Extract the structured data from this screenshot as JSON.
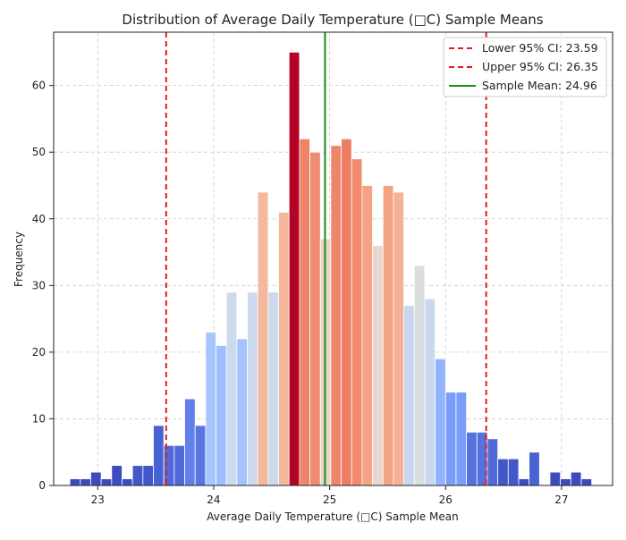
{
  "chart_data": {
    "type": "bar",
    "title": "Distribution of Average Daily Temperature (□C) Sample Means",
    "xlabel": "Average Daily Temperature (□C) Sample Mean",
    "ylabel": "Frequency",
    "xlim": [
      22.62,
      27.44
    ],
    "ylim": [
      0,
      68
    ],
    "xticks": [
      23,
      24,
      25,
      26,
      27
    ],
    "yticks": [
      0,
      10,
      20,
      30,
      40,
      50,
      60
    ],
    "grid": true,
    "bin_width": 0.09,
    "bins": [
      {
        "x": 22.76,
        "count": 1,
        "color": "#3b4cc0"
      },
      {
        "x": 22.85,
        "count": 1,
        "color": "#3b4cc0"
      },
      {
        "x": 22.94,
        "count": 2,
        "color": "#3b4cc0"
      },
      {
        "x": 23.03,
        "count": 1,
        "color": "#3b4cc0"
      },
      {
        "x": 23.12,
        "count": 3,
        "color": "#3b4cc0"
      },
      {
        "x": 23.21,
        "count": 1,
        "color": "#3b4cc0"
      },
      {
        "x": 23.3,
        "count": 3,
        "color": "#4257c9"
      },
      {
        "x": 23.39,
        "count": 3,
        "color": "#4257c9"
      },
      {
        "x": 23.48,
        "count": 9,
        "color": "#4a63d3"
      },
      {
        "x": 23.57,
        "count": 6,
        "color": "#4f69d9"
      },
      {
        "x": 23.66,
        "count": 6,
        "color": "#4f69d9"
      },
      {
        "x": 23.75,
        "count": 13,
        "color": "#6180e9"
      },
      {
        "x": 23.84,
        "count": 9,
        "color": "#5875e1"
      },
      {
        "x": 23.93,
        "count": 23,
        "color": "#a7c5fe"
      },
      {
        "x": 24.02,
        "count": 21,
        "color": "#9ebeff"
      },
      {
        "x": 24.11,
        "count": 29,
        "color": "#cdd9ec"
      },
      {
        "x": 24.2,
        "count": 22,
        "color": "#a3c2fe"
      },
      {
        "x": 24.29,
        "count": 29,
        "color": "#cdd9ec"
      },
      {
        "x": 24.38,
        "count": 44,
        "color": "#f5b89c"
      },
      {
        "x": 24.47,
        "count": 29,
        "color": "#cdd9ec"
      },
      {
        "x": 24.56,
        "count": 41,
        "color": "#f3b79b"
      },
      {
        "x": 24.65,
        "count": 65,
        "color": "#b40426"
      },
      {
        "x": 24.74,
        "count": 52,
        "color": "#ee8468"
      },
      {
        "x": 24.83,
        "count": 50,
        "color": "#ef8b6e"
      },
      {
        "x": 24.92,
        "count": 37,
        "color": "#e9d5cb"
      },
      {
        "x": 25.01,
        "count": 51,
        "color": "#ee8669"
      },
      {
        "x": 25.1,
        "count": 52,
        "color": "#ec7f63"
      },
      {
        "x": 25.19,
        "count": 49,
        "color": "#f08b6e"
      },
      {
        "x": 25.28,
        "count": 45,
        "color": "#f4a384"
      },
      {
        "x": 25.37,
        "count": 36,
        "color": "#e7d7ce"
      },
      {
        "x": 25.46,
        "count": 45,
        "color": "#f4a384"
      },
      {
        "x": 25.55,
        "count": 44,
        "color": "#f5b196"
      },
      {
        "x": 25.64,
        "count": 27,
        "color": "#c8d6ef"
      },
      {
        "x": 25.73,
        "count": 33,
        "color": "#dcdddd"
      },
      {
        "x": 25.82,
        "count": 28,
        "color": "#cad8ef"
      },
      {
        "x": 25.91,
        "count": 19,
        "color": "#92b4fe"
      },
      {
        "x": 26.0,
        "count": 14,
        "color": "#7a9df8"
      },
      {
        "x": 26.09,
        "count": 14,
        "color": "#7a9df8"
      },
      {
        "x": 26.18,
        "count": 8,
        "color": "#5572df"
      },
      {
        "x": 26.27,
        "count": 8,
        "color": "#5572df"
      },
      {
        "x": 26.36,
        "count": 7,
        "color": "#4f69d9"
      },
      {
        "x": 26.45,
        "count": 4,
        "color": "#4257c9"
      },
      {
        "x": 26.54,
        "count": 4,
        "color": "#4257c9"
      },
      {
        "x": 26.63,
        "count": 1,
        "color": "#3b4cc0"
      },
      {
        "x": 26.72,
        "count": 5,
        "color": "#4a63d3"
      },
      {
        "x": 26.81,
        "count": 0,
        "color": "#3b4cc0"
      },
      {
        "x": 26.9,
        "count": 2,
        "color": "#3b4cc0"
      },
      {
        "x": 26.99,
        "count": 1,
        "color": "#3b4cc0"
      },
      {
        "x": 27.08,
        "count": 2,
        "color": "#3b4cc0"
      },
      {
        "x": 27.17,
        "count": 1,
        "color": "#3b4cc0"
      }
    ],
    "lines": [
      {
        "label": "Lower 95% CI: 23.59",
        "x": 23.59,
        "color": "#e41a1c",
        "style": "dashed"
      },
      {
        "label": "Upper 95% CI: 26.35",
        "x": 26.35,
        "color": "#e41a1c",
        "style": "dashed"
      },
      {
        "label": "Sample Mean: 24.96",
        "x": 24.96,
        "color": "#1a8a1a",
        "style": "solid"
      }
    ],
    "legend_position": "top-right"
  }
}
